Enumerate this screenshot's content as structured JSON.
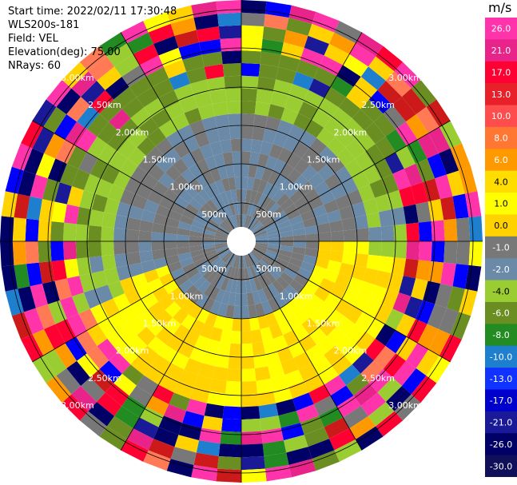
{
  "header": {
    "start_time": "Start time: 2022/02/11 17:30:48",
    "instrument": "WLS200s-181",
    "field": "Field: VEL",
    "elevation": "Elevation(deg): 75.00",
    "nrays": "NRays: 60"
  },
  "ppi": {
    "range_rings": [
      "500m",
      "1.00km",
      "1.50km",
      "2.00km",
      "2.50km",
      "3.00km"
    ],
    "nrays": 60,
    "center_color": "#ffffff",
    "line_color": "#000000"
  },
  "colorbar": {
    "unit": "m/s",
    "labels": [
      "26.0",
      "21.0",
      "17.0",
      "13.0",
      "10.0",
      "8.0",
      "6.0",
      "4.0",
      "1.0",
      "0.0",
      "-1.0",
      "-2.0",
      "-4.0",
      "-6.0",
      "-8.0",
      "-10.0",
      "-13.0",
      "-17.0",
      "-21.0",
      "-26.0",
      "-30.0"
    ],
    "colors": [
      "#ff33aa",
      "#e8238a",
      "#ff0033",
      "#e8202a",
      "#ff4d4d",
      "#ff7733",
      "#ff9900",
      "#ffdd00",
      "#ffff00",
      "#ffd200",
      "#787878",
      "#6a8aa8",
      "#9acd32",
      "#6b8e23",
      "#228b22",
      "#1e7fcf",
      "#1033ff",
      "#0000cc",
      "#1a1a99",
      "#000066",
      "#10105a"
    ]
  }
}
